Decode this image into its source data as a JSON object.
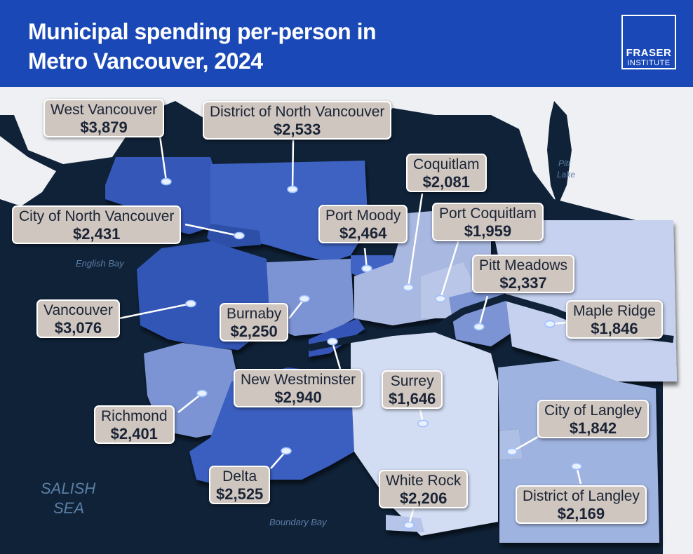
{
  "header": {
    "title_line1": "Municipal spending per-person in",
    "title_line2": "Metro Vancouver, 2024",
    "logo_line1": "FRASER",
    "logo_line2": "INSTITUTE"
  },
  "water_labels": {
    "english_bay": "English Bay",
    "pitt_lake_1": "Pitt",
    "pitt_lake_2": "Lake",
    "salish_sea_1": "SALISH",
    "salish_sea_2": "SEA",
    "boundary_bay": "Boundary Bay"
  },
  "municipalities": [
    {
      "id": "west-vancouver",
      "name": "West Vancouver",
      "value": "$3,879"
    },
    {
      "id": "district-of-north-vancouver",
      "name": "District of North Vancouver",
      "value": "$2,533"
    },
    {
      "id": "city-of-north-vancouver",
      "name": "City of North Vancouver",
      "value": "$2,431"
    },
    {
      "id": "coquitlam",
      "name": "Coquitlam",
      "value": "$2,081"
    },
    {
      "id": "port-moody",
      "name": "Port Moody",
      "value": "$2,464"
    },
    {
      "id": "port-coquitlam",
      "name": "Port Coquitlam",
      "value": "$1,959"
    },
    {
      "id": "pitt-meadows",
      "name": "Pitt Meadows",
      "value": "$2,337"
    },
    {
      "id": "vancouver",
      "name": "Vancouver",
      "value": "$3,076"
    },
    {
      "id": "burnaby",
      "name": "Burnaby",
      "value": "$2,250"
    },
    {
      "id": "maple-ridge",
      "name": "Maple Ridge",
      "value": "$1,846"
    },
    {
      "id": "new-westminster",
      "name": "New Westminster",
      "value": "$2,940"
    },
    {
      "id": "surrey",
      "name": "Surrey",
      "value": "$1,646"
    },
    {
      "id": "richmond",
      "name": "Richmond",
      "value": "$2,401"
    },
    {
      "id": "city-of-langley",
      "name": "City of Langley",
      "value": "$1,842"
    },
    {
      "id": "delta",
      "name": "Delta",
      "value": "$2,525"
    },
    {
      "id": "white-rock",
      "name": "White Rock",
      "value": "$2,206"
    },
    {
      "id": "district-of-langley",
      "name": "District of Langley",
      "value": "$2,169"
    }
  ],
  "colors": {
    "header": "#1a49b7",
    "water": "#0f2238",
    "land_outside": "#eef0f4",
    "callout_bg": "#cfc6bf"
  }
}
